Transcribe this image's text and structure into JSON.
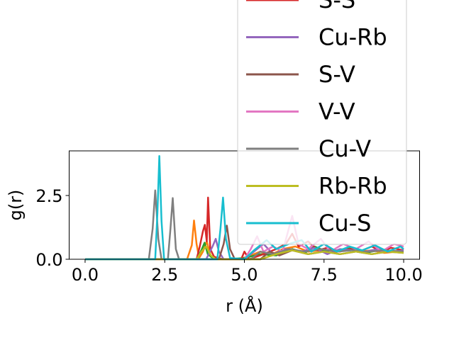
{
  "chart_data": {
    "type": "line",
    "title": "",
    "xlabel": "r (Å)",
    "ylabel": "g(r)",
    "xlim": [
      -0.5,
      10.5
    ],
    "ylim": [
      0,
      4.25
    ],
    "xticks": [
      0.0,
      2.5,
      5.0,
      7.5,
      10.0
    ],
    "xtick_labels": [
      "0.0",
      "2.5",
      "5.0",
      "7.5",
      "10.0"
    ],
    "yticks": [
      0.0,
      2.5
    ],
    "ytick_labels": [
      "0.0",
      "2.5"
    ],
    "grid": false,
    "legend_position": "top-right",
    "series": [
      {
        "name": "",
        "color": "#ff7f0e",
        "points": [
          [
            0,
            0
          ],
          [
            3.2,
            0
          ],
          [
            3.35,
            0.55
          ],
          [
            3.42,
            1.52
          ],
          [
            3.5,
            0.6
          ],
          [
            3.58,
            0.05
          ],
          [
            3.7,
            0.3
          ],
          [
            3.82,
            0.7
          ],
          [
            3.95,
            0.1
          ],
          [
            4.2,
            0
          ],
          [
            4.8,
            0
          ],
          [
            5.1,
            0.1
          ],
          [
            5.5,
            0.3
          ],
          [
            5.8,
            0.15
          ],
          [
            6.2,
            0.4
          ],
          [
            6.6,
            0.5
          ],
          [
            7.0,
            0.3
          ],
          [
            7.4,
            0.35
          ],
          [
            7.8,
            0.25
          ],
          [
            8.2,
            0.4
          ],
          [
            8.6,
            0.3
          ],
          [
            9.0,
            0.35
          ],
          [
            9.4,
            0.25
          ],
          [
            9.8,
            0.3
          ],
          [
            10,
            0.3
          ]
        ]
      },
      {
        "name": "",
        "color": "#2ca02c",
        "points": [
          [
            0,
            0
          ],
          [
            3.5,
            0
          ],
          [
            3.65,
            0.35
          ],
          [
            3.75,
            0.65
          ],
          [
            3.85,
            0.2
          ],
          [
            4.0,
            0.05
          ],
          [
            4.4,
            0
          ],
          [
            5.0,
            0.05
          ],
          [
            5.5,
            0.2
          ],
          [
            6.0,
            0.15
          ],
          [
            6.5,
            0.4
          ],
          [
            6.9,
            0.25
          ],
          [
            7.2,
            0.5
          ],
          [
            7.6,
            0.3
          ],
          [
            8.0,
            0.35
          ],
          [
            8.4,
            0.45
          ],
          [
            8.8,
            0.25
          ],
          [
            9.2,
            0.35
          ],
          [
            9.6,
            0.3
          ],
          [
            10,
            0.3
          ]
        ]
      },
      {
        "name": "S-S",
        "color": "#d62728",
        "points": [
          [
            0,
            0
          ],
          [
            3.5,
            0
          ],
          [
            3.6,
            0.5
          ],
          [
            3.7,
            1.1
          ],
          [
            3.76,
            1.35
          ],
          [
            3.82,
            0.7
          ],
          [
            3.86,
            2.42
          ],
          [
            3.93,
            0.4
          ],
          [
            4.05,
            0.1
          ],
          [
            4.3,
            0
          ],
          [
            4.9,
            0
          ],
          [
            5.0,
            0.3
          ],
          [
            5.15,
            0
          ],
          [
            5.6,
            0.2
          ],
          [
            6.0,
            0.4
          ],
          [
            6.3,
            0.6
          ],
          [
            6.5,
            1.0
          ],
          [
            6.7,
            0.5
          ],
          [
            7.0,
            0.7
          ],
          [
            7.3,
            0.35
          ],
          [
            7.6,
            0.45
          ],
          [
            8.0,
            0.3
          ],
          [
            8.3,
            0.4
          ],
          [
            8.7,
            0.35
          ],
          [
            9.0,
            0.5
          ],
          [
            9.3,
            0.3
          ],
          [
            9.6,
            0.45
          ],
          [
            10,
            0.35
          ]
        ]
      },
      {
        "name": "Cu-Rb",
        "color": "#9467bd",
        "points": [
          [
            0,
            0
          ],
          [
            3.8,
            0
          ],
          [
            4.0,
            0.5
          ],
          [
            4.1,
            0.8
          ],
          [
            4.2,
            0.3
          ],
          [
            4.35,
            0
          ],
          [
            5.0,
            0
          ],
          [
            5.3,
            0.3
          ],
          [
            5.6,
            0.6
          ],
          [
            5.9,
            0.2
          ],
          [
            6.3,
            0.4
          ],
          [
            6.8,
            0.3
          ],
          [
            7.2,
            0.45
          ],
          [
            7.6,
            0.2
          ],
          [
            8.0,
            0.4
          ],
          [
            8.4,
            0.35
          ],
          [
            8.8,
            0.3
          ],
          [
            9.2,
            0.4
          ],
          [
            9.6,
            0.3
          ],
          [
            10,
            0.35
          ]
        ]
      },
      {
        "name": "S-V",
        "color": "#8c564b",
        "points": [
          [
            0,
            0
          ],
          [
            4.2,
            0
          ],
          [
            4.35,
            0.6
          ],
          [
            4.45,
            1.32
          ],
          [
            4.55,
            0.4
          ],
          [
            4.7,
            0
          ],
          [
            5.5,
            0
          ],
          [
            5.8,
            0.3
          ],
          [
            6.1,
            0.15
          ],
          [
            6.5,
            0.35
          ],
          [
            7.0,
            0.2
          ],
          [
            7.5,
            0.3
          ],
          [
            8.0,
            0.2
          ],
          [
            8.5,
            0.3
          ],
          [
            9.0,
            0.2
          ],
          [
            9.5,
            0.3
          ],
          [
            10,
            0.25
          ]
        ]
      },
      {
        "name": "V-V",
        "color": "#e377c2",
        "points": [
          [
            0,
            0
          ],
          [
            5.0,
            0
          ],
          [
            5.2,
            0.4
          ],
          [
            5.4,
            0.9
          ],
          [
            5.6,
            0.3
          ],
          [
            5.9,
            0.5
          ],
          [
            6.2,
            0.3
          ],
          [
            6.5,
            1.7
          ],
          [
            6.7,
            0.6
          ],
          [
            7.0,
            0.4
          ],
          [
            7.4,
            0.8
          ],
          [
            7.7,
            0.3
          ],
          [
            8.1,
            0.6
          ],
          [
            8.5,
            0.4
          ],
          [
            8.9,
            0.7
          ],
          [
            9.3,
            0.3
          ],
          [
            9.7,
            0.6
          ],
          [
            10,
            0.5
          ]
        ]
      },
      {
        "name": "Cu-V",
        "color": "#7f7f7f",
        "points": [
          [
            0,
            0
          ],
          [
            2.0,
            0
          ],
          [
            2.12,
            1.2
          ],
          [
            2.2,
            2.7
          ],
          [
            2.3,
            0.8
          ],
          [
            2.4,
            0
          ],
          [
            2.6,
            0
          ],
          [
            2.68,
            1.2
          ],
          [
            2.75,
            2.4
          ],
          [
            2.85,
            0.4
          ],
          [
            2.95,
            0
          ],
          [
            5.2,
            0
          ],
          [
            5.5,
            0.3
          ],
          [
            5.9,
            0.2
          ],
          [
            6.4,
            0.4
          ],
          [
            6.9,
            0.3
          ],
          [
            7.4,
            0.4
          ],
          [
            7.9,
            0.3
          ],
          [
            8.4,
            0.35
          ],
          [
            8.9,
            0.3
          ],
          [
            9.4,
            0.35
          ],
          [
            10,
            0.3
          ]
        ]
      },
      {
        "name": "Rb-Rb",
        "color": "#bcbd22",
        "points": [
          [
            0,
            0
          ],
          [
            3.5,
            0
          ],
          [
            3.65,
            0.3
          ],
          [
            3.8,
            0.5
          ],
          [
            3.95,
            0.15
          ],
          [
            4.1,
            0
          ],
          [
            5.5,
            0
          ],
          [
            6.0,
            0.2
          ],
          [
            6.5,
            0.35
          ],
          [
            7.0,
            0.2
          ],
          [
            7.5,
            0.3
          ],
          [
            8.0,
            0.2
          ],
          [
            8.5,
            0.3
          ],
          [
            9.0,
            0.2
          ],
          [
            9.5,
            0.3
          ],
          [
            10,
            0.25
          ]
        ]
      },
      {
        "name": "Cu-S",
        "color": "#17becf",
        "points": [
          [
            0,
            0
          ],
          [
            2.2,
            0
          ],
          [
            2.27,
            1.8
          ],
          [
            2.33,
            4.05
          ],
          [
            2.4,
            1.5
          ],
          [
            2.48,
            0
          ],
          [
            4.15,
            0
          ],
          [
            4.25,
            1.2
          ],
          [
            4.33,
            2.42
          ],
          [
            4.42,
            0.8
          ],
          [
            4.55,
            0.05
          ],
          [
            5.0,
            0
          ],
          [
            5.3,
            0.35
          ],
          [
            5.7,
            0.75
          ],
          [
            6.0,
            0.4
          ],
          [
            6.4,
            0.6
          ],
          [
            6.8,
            0.75
          ],
          [
            7.1,
            0.3
          ],
          [
            7.5,
            0.6
          ],
          [
            7.9,
            0.3
          ],
          [
            8.3,
            0.5
          ],
          [
            8.7,
            0.35
          ],
          [
            9.1,
            0.55
          ],
          [
            9.5,
            0.3
          ],
          [
            9.9,
            0.5
          ],
          [
            10,
            0.4
          ]
        ]
      }
    ]
  }
}
